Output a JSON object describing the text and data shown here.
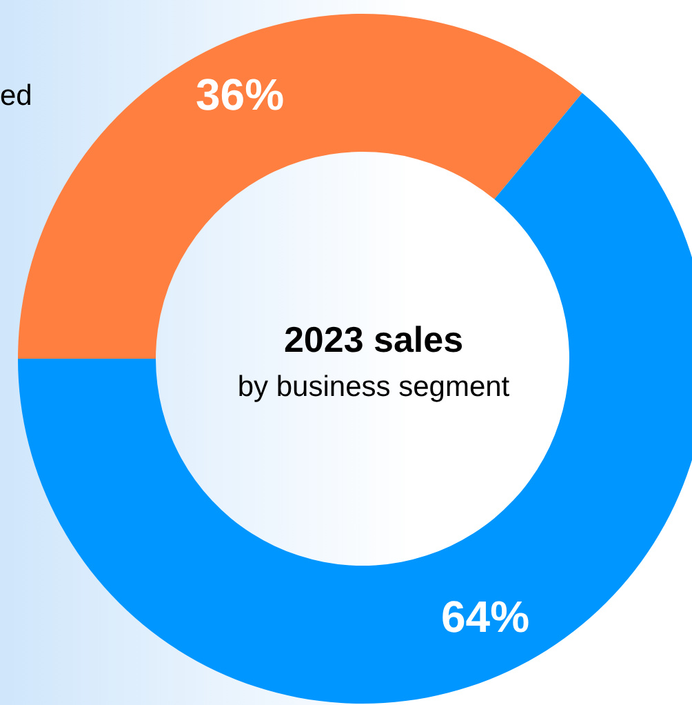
{
  "chart_data": {
    "type": "donut",
    "title": "2023 sales",
    "subtitle": "by business segment",
    "categories": [
      null,
      null
    ],
    "values": [
      36,
      64
    ],
    "colors": [
      "#ff7f40",
      "#0096ff"
    ],
    "value_labels": [
      "36%",
      "64%"
    ],
    "annotations": [
      "ed"
    ],
    "legend": false
  }
}
